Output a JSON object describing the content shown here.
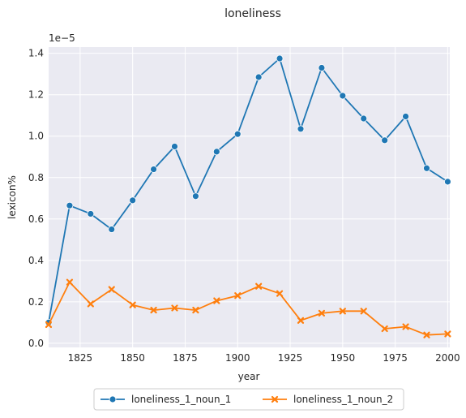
{
  "chart_data": {
    "type": "line",
    "title": "loneliness",
    "xlabel": "year",
    "ylabel": "lexicon%",
    "y_multiplier_label": "1e−5",
    "xlim": [
      1810,
      2001
    ],
    "ylim": [
      -0.02,
      1.43
    ],
    "x_ticks": [
      1825,
      1850,
      1875,
      1900,
      1925,
      1950,
      1975,
      2000
    ],
    "x_tick_labels": [
      "1825",
      "1850",
      "1875",
      "1900",
      "1925",
      "1950",
      "1975",
      "2000"
    ],
    "y_ticks": [
      0.0,
      0.2,
      0.4,
      0.6,
      0.8,
      1.0,
      1.2,
      1.4
    ],
    "y_tick_labels": [
      "0.0",
      "0.2",
      "0.4",
      "0.6",
      "0.8",
      "1.0",
      "1.2",
      "1.4"
    ],
    "x": [
      1810,
      1820,
      1830,
      1840,
      1850,
      1860,
      1870,
      1880,
      1890,
      1900,
      1910,
      1920,
      1930,
      1940,
      1950,
      1960,
      1970,
      1980,
      1990,
      2000
    ],
    "series": [
      {
        "name": "loneliness_1_noun_1",
        "color": "#1f77b4",
        "marker": "circle",
        "values": [
          0.1,
          0.665,
          0.625,
          0.55,
          0.69,
          0.84,
          0.95,
          0.71,
          0.925,
          1.01,
          1.285,
          1.375,
          1.035,
          1.33,
          1.195,
          1.085,
          0.98,
          1.095,
          0.845,
          0.78
        ]
      },
      {
        "name": "loneliness_1_noun_2",
        "color": "#ff7f0e",
        "marker": "x",
        "values": [
          0.09,
          0.295,
          0.19,
          0.26,
          0.185,
          0.16,
          0.17,
          0.16,
          0.205,
          0.23,
          0.275,
          0.24,
          0.11,
          0.145,
          0.155,
          0.155,
          0.07,
          0.08,
          0.04,
          0.045
        ]
      }
    ],
    "grid": true,
    "legend_position": "bottom-center"
  }
}
